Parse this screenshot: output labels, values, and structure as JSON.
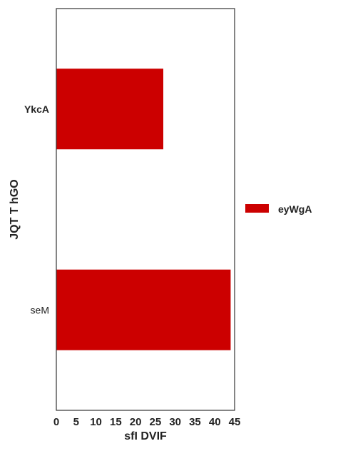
{
  "chart_data": {
    "type": "bar",
    "orientation": "horizontal",
    "categories": [
      "YkcA",
      "seM"
    ],
    "category_label_bold": [
      true,
      false
    ],
    "series": [
      {
        "name": "eyWgA",
        "values": [
          27,
          44
        ],
        "color": "#cc0000"
      }
    ],
    "xlabel": "sfI DVIF",
    "ylabel": "JQT T hGO",
    "xlim": [
      0,
      45
    ],
    "xticks": [
      0,
      5,
      10,
      15,
      20,
      25,
      30,
      35,
      40,
      45
    ],
    "grid": false,
    "legend_position": "right"
  }
}
